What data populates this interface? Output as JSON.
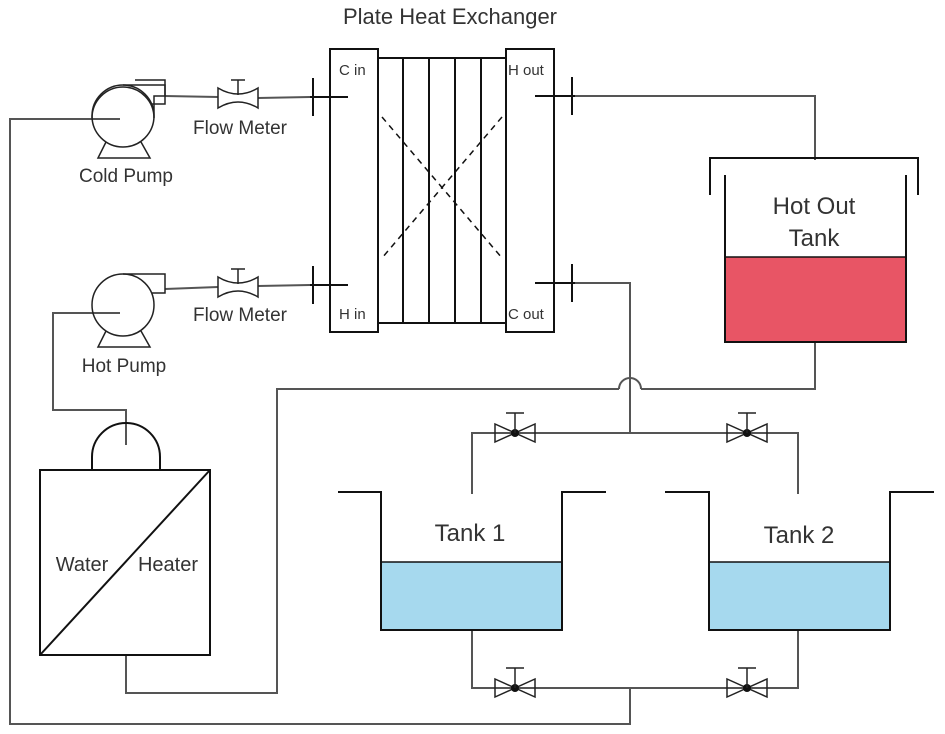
{
  "title": "Plate Heat Exchanger",
  "exchanger": {
    "c_in": "C  in",
    "h_out": "H  out",
    "h_in": "H  in",
    "c_out": "C  out"
  },
  "cold_pump_label": "Cold Pump",
  "hot_pump_label": "Hot Pump",
  "flow_meter_top_label": "Flow  Meter",
  "flow_meter_bottom_label": "Flow  Meter",
  "hot_out_tank": {
    "line1": "Hot Out",
    "line2": "Tank",
    "liquid_color": "#e85565"
  },
  "tank1_label": "Tank 1",
  "tank2_label": "Tank 2",
  "tank_liquid_color": "#a6d9ee",
  "heater": {
    "word1": "Water",
    "word2": "Heater"
  }
}
